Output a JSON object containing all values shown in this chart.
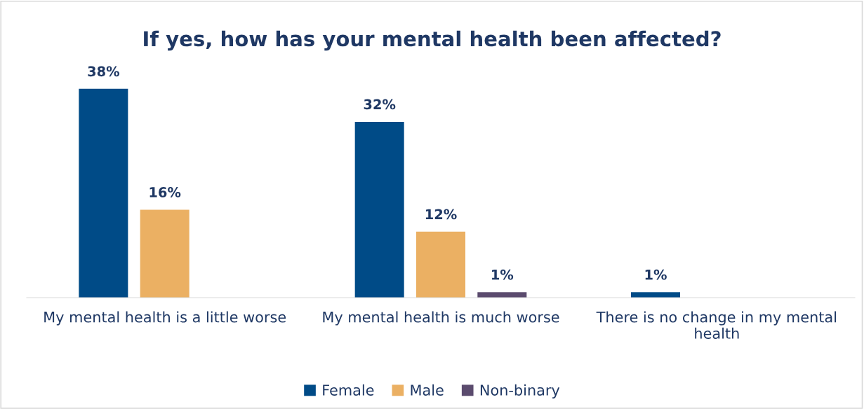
{
  "chart_data": {
    "type": "bar",
    "title": "If yes, how has your mental health been affected?",
    "categories": [
      "My mental health is a little worse",
      "My mental health is much worse",
      "There is no change in my mental health"
    ],
    "series": [
      {
        "name": "Female",
        "color": "#004b87",
        "values": [
          38,
          32,
          1
        ],
        "value_labels": [
          "38%",
          "32%",
          "1%"
        ]
      },
      {
        "name": "Male",
        "color": "#ebb063",
        "values": [
          16,
          12,
          null
        ],
        "value_labels": [
          "16%",
          "12%",
          null
        ]
      },
      {
        "name": "Non-binary",
        "color": "#5b4b6e",
        "values": [
          null,
          1,
          null
        ],
        "value_labels": [
          null,
          "1%",
          null
        ]
      }
    ],
    "legend": "bottom",
    "grid": false,
    "tick_labels": "x"
  }
}
